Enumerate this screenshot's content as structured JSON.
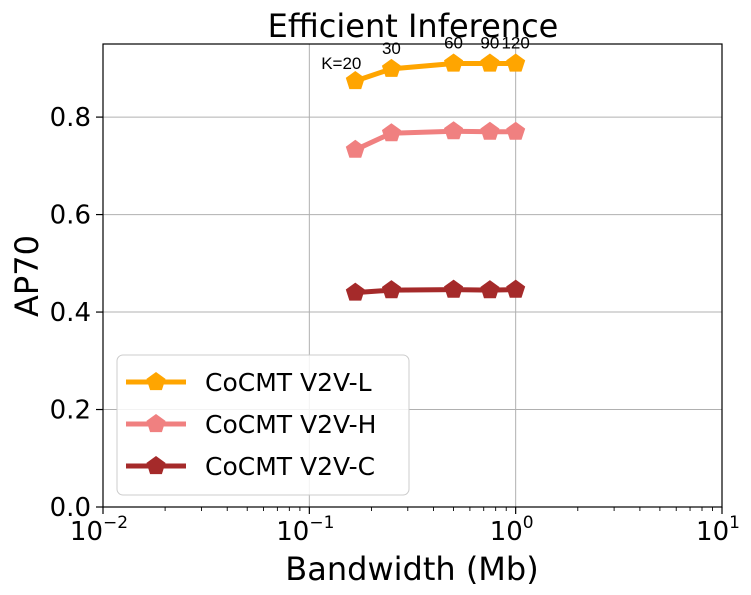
{
  "chart_data": {
    "type": "line",
    "title": "Efficient Inference",
    "xlabel": "Bandwidth (Mb)",
    "ylabel": "AP70",
    "xscale": "log",
    "xlim": [
      0.01,
      10
    ],
    "ylim": [
      0.0,
      0.95
    ],
    "grid": true,
    "legend_position": "lower-left",
    "x_ticks": [
      {
        "base": "10",
        "exp": "−2",
        "value": 0.01
      },
      {
        "base": "10",
        "exp": "−1",
        "value": 0.1
      },
      {
        "base": "10",
        "exp": "0",
        "value": 1
      },
      {
        "base": "10",
        "exp": "1",
        "value": 10
      }
    ],
    "y_ticks": [
      {
        "label": "0.0",
        "value": 0.0
      },
      {
        "label": "0.2",
        "value": 0.2
      },
      {
        "label": "0.4",
        "value": 0.4
      },
      {
        "label": "0.6",
        "value": 0.6
      },
      {
        "label": "0.8",
        "value": 0.8
      }
    ],
    "x": [
      0.167,
      0.25,
      0.5,
      0.75,
      1.0
    ],
    "series": [
      {
        "name": "CoCMT V2V-L",
        "color": "#ffa500",
        "values": [
          0.874,
          0.899,
          0.91,
          0.91,
          0.91
        ]
      },
      {
        "name": "CoCMT V2V-H",
        "color": "#f08080",
        "values": [
          0.733,
          0.767,
          0.771,
          0.77,
          0.77
        ]
      },
      {
        "name": "CoCMT V2V-C",
        "color": "#a52a2a",
        "values": [
          0.44,
          0.445,
          0.446,
          0.445,
          0.446
        ]
      }
    ],
    "annotations": [
      {
        "text": "K=20",
        "x": 0.167
      },
      {
        "text": "30",
        "x": 0.25
      },
      {
        "text": "60",
        "x": 0.5
      },
      {
        "text": "90",
        "x": 0.75
      },
      {
        "text": "120",
        "x": 1.0
      }
    ]
  }
}
